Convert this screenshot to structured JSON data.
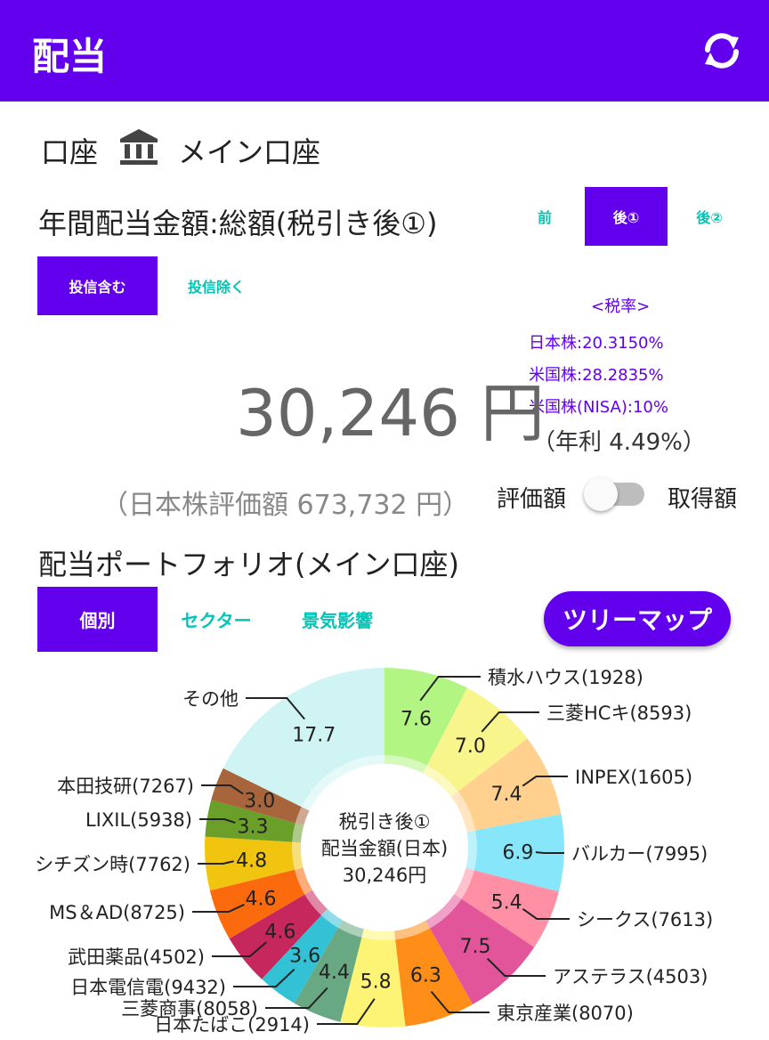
{
  "appbar": {
    "title": "配当",
    "refresh_icon": "refresh-icon",
    "color": "#6200ee"
  },
  "account": {
    "label": "口座",
    "icon": "bank-icon",
    "name": "メイン口座"
  },
  "annual": {
    "title": "年間配当金額:総額(税引き後①)",
    "tax_tabs": [
      "前",
      "後①",
      "後②"
    ],
    "fund_tabs": [
      "投信含む",
      "投信除く"
    ],
    "tax_rates": {
      "header": "<税率>",
      "lines": [
        "日本株:20.3150%",
        "米国株:28.2835%",
        "米国株(NISA):10%"
      ]
    },
    "amount": "30,246 円",
    "yield": "（年利 4.49%）",
    "eval_amount": "（日本株評価額 673,732 円）",
    "toggle": {
      "left_label": "評価額",
      "right_label": "取得額",
      "on": false
    }
  },
  "portfolio": {
    "title": "配当ポートフォリオ(メイン口座)",
    "tabs": [
      "個別",
      "セクター",
      "景気影響"
    ],
    "treemap_button": "ツリーマップ"
  },
  "chart_data": {
    "type": "pie",
    "center_text": [
      "税引き後①",
      "配当金額(日本)",
      "30,246円"
    ],
    "slices": [
      {
        "label": "積水ハウス(1928)",
        "value": 7.6,
        "color": "#b2f583"
      },
      {
        "label": "三菱HCキ(8593)",
        "value": 7.0,
        "color": "#f8f58c"
      },
      {
        "label": "INPEX(1605)",
        "value": 7.4,
        "color": "#ffd08e"
      },
      {
        "label": "バルカー(7995)",
        "value": 6.9,
        "color": "#87e6fa"
      },
      {
        "label": "シークス(7613)",
        "value": 5.4,
        "color": "#ff8fa5"
      },
      {
        "label": "アステラス(4503)",
        "value": 7.5,
        "color": "#e2559a"
      },
      {
        "label": "東京産業(8070)",
        "value": 6.3,
        "color": "#fe8e17"
      },
      {
        "label": "日本たばこ(2914)",
        "value": 5.8,
        "color": "#fdf475"
      },
      {
        "label": "三菱商事(8058)",
        "value": 4.4,
        "color": "#68a882"
      },
      {
        "label": "日本電信電(9432)",
        "value": 3.6,
        "color": "#33c1d6"
      },
      {
        "label": "武田薬品(4502)",
        "value": 4.6,
        "color": "#c6275c"
      },
      {
        "label": "MS＆AD(8725)",
        "value": 4.6,
        "color": "#fb6a0c"
      },
      {
        "label": "シチズン時(7762)",
        "value": 4.8,
        "color": "#f1c40f"
      },
      {
        "label": "LIXIL(5938)",
        "value": 3.3,
        "color": "#6a9f2a"
      },
      {
        "label": "本田技研(7267)",
        "value": 3.0,
        "color": "#a8643b"
      },
      {
        "label": "その他",
        "value": 17.7,
        "color": "#d0f4f4"
      }
    ]
  }
}
